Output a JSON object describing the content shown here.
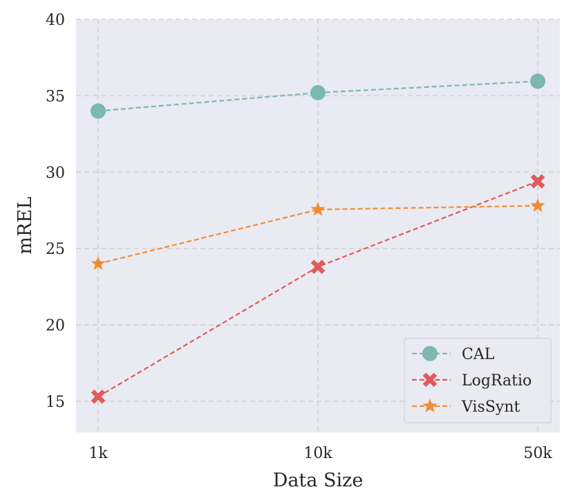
{
  "chart_data": {
    "type": "line",
    "xlabel": "Data Size",
    "ylabel": "mREL",
    "categories": [
      "1k",
      "10k",
      "50k"
    ],
    "ylim": [
      14,
      40
    ],
    "yticks": [
      15,
      20,
      25,
      30,
      35,
      40
    ],
    "grid": true,
    "legend_position": "bottom-right",
    "series": [
      {
        "name": "CAL",
        "values": [
          34.0,
          35.2,
          35.95
        ],
        "color": "#7ab8b0",
        "marker": "circle"
      },
      {
        "name": "LogRatio",
        "values": [
          15.3,
          23.8,
          29.4
        ],
        "color": "#e05a5a",
        "marker": "x"
      },
      {
        "name": "VisSynt",
        "values": [
          24.0,
          27.55,
          27.8
        ],
        "color": "#f08c30",
        "marker": "star"
      }
    ]
  }
}
